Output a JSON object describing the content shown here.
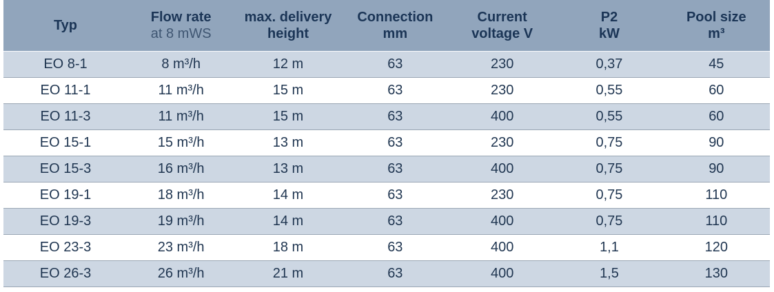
{
  "table": {
    "header": [
      [
        "Typ"
      ],
      [
        "Flow rate",
        "at 8 mWS"
      ],
      [
        "max. delivery",
        "height"
      ],
      [
        "Connection",
        "mm"
      ],
      [
        "Current",
        "voltage V"
      ],
      [
        "P2",
        "kW"
      ],
      [
        "Pool size",
        "m³"
      ]
    ],
    "rows": [
      [
        "EO 8-1",
        "8 m³/h",
        "12 m",
        "63",
        "230",
        "0,37",
        "45"
      ],
      [
        "EO 11-1",
        "11 m³/h",
        "15 m",
        "63",
        "230",
        "0,55",
        "60"
      ],
      [
        "EO 11-3",
        "11 m³/h",
        "15 m",
        "63",
        "400",
        "0,55",
        "60"
      ],
      [
        "EO 15-1",
        "15 m³/h",
        "13 m",
        "63",
        "230",
        "0,75",
        "90"
      ],
      [
        "EO 15-3",
        "16 m³/h",
        "13 m",
        "63",
        "400",
        "0,75",
        "90"
      ],
      [
        "EO 19-1",
        "18 m³/h",
        "14 m",
        "63",
        "230",
        "0,75",
        "110"
      ],
      [
        "EO 19-3",
        "19 m³/h",
        "14 m",
        "63",
        "400",
        "0,75",
        "110"
      ],
      [
        "EO 23-3",
        "23 m³/h",
        "18 m",
        "63",
        "400",
        "1,1",
        "120"
      ],
      [
        "EO 26-3",
        "26 m³/h",
        "21 m",
        "63",
        "400",
        "1,5",
        "130"
      ]
    ]
  }
}
